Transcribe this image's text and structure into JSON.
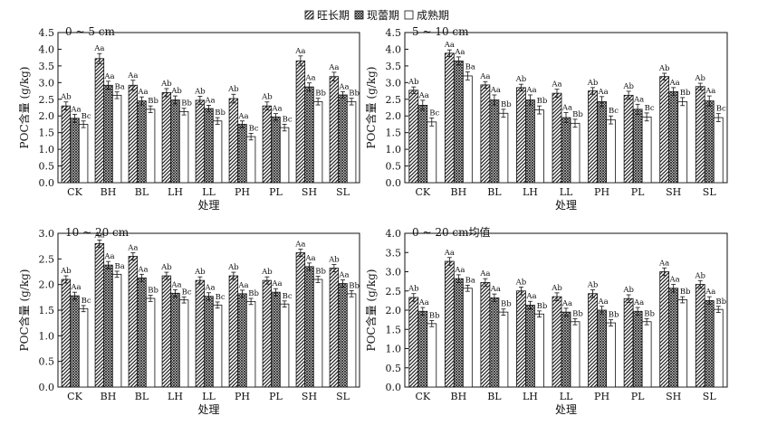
{
  "legend": {
    "items": [
      {
        "name": "旺长期",
        "pattern": "diag"
      },
      {
        "name": "现蕾期",
        "pattern": "cross"
      },
      {
        "name": "成熟期",
        "pattern": "none"
      }
    ]
  },
  "chart_data": [
    {
      "type": "bar",
      "title": "0 ~ 5 cm",
      "xlabel": "处理",
      "ylabel": "POC含量 (g/kg)",
      "ylim": [
        0,
        4.5
      ],
      "yticks": [
        "0.0",
        "0.5",
        "1.0",
        "1.5",
        "2.0",
        "2.5",
        "3.0",
        "3.5",
        "4.0",
        "4.5"
      ],
      "categories": [
        "CK",
        "BH",
        "BL",
        "LH",
        "LL",
        "PH",
        "PL",
        "SH",
        "SL"
      ],
      "series": [
        {
          "name": "旺长期",
          "values": [
            2.3,
            3.72,
            2.92,
            2.7,
            2.47,
            2.52,
            2.3,
            3.65,
            3.18
          ],
          "errors": [
            0.12,
            0.15,
            0.15,
            0.12,
            0.12,
            0.13,
            0.12,
            0.15,
            0.13
          ],
          "labels": [
            "Ab",
            "Aa",
            "Aa",
            "Ab",
            "Ab",
            "Ab",
            "Ab",
            "Aa",
            "Aa"
          ]
        },
        {
          "name": "现蕾期",
          "values": [
            1.93,
            2.92,
            2.45,
            2.48,
            2.22,
            1.75,
            1.97,
            2.87,
            2.63
          ],
          "errors": [
            0.12,
            0.12,
            0.12,
            0.12,
            0.1,
            0.1,
            0.1,
            0.12,
            0.1
          ],
          "labels": [
            "Aa",
            "Aa",
            "Aa",
            "Ab",
            "Aa",
            "Aa",
            "Aa",
            "Aa",
            "Aa"
          ]
        },
        {
          "name": "成熟期",
          "values": [
            1.75,
            2.62,
            2.2,
            2.13,
            1.85,
            1.38,
            1.65,
            2.43,
            2.43
          ],
          "errors": [
            0.1,
            0.1,
            0.1,
            0.1,
            0.1,
            0.1,
            0.1,
            0.1,
            0.1
          ],
          "labels": [
            "Bc",
            "Ba",
            "Bb",
            "Bb",
            "Bb",
            "Bc",
            "Bc",
            "Bb",
            "Bb"
          ]
        }
      ]
    },
    {
      "type": "bar",
      "title": "5 ~ 10 cm",
      "xlabel": "处理",
      "ylabel": "POC含量 (g/kg)",
      "ylim": [
        0,
        4.5
      ],
      "yticks": [
        "0.0",
        "0.5",
        "1.0",
        "1.5",
        "2.0",
        "2.5",
        "3.0",
        "3.5",
        "4.0",
        "4.5"
      ],
      "categories": [
        "CK",
        "BH",
        "BL",
        "LH",
        "LL",
        "PH",
        "PL",
        "SH",
        "SL"
      ],
      "series": [
        {
          "name": "旺长期",
          "values": [
            2.77,
            3.88,
            2.93,
            2.85,
            2.68,
            2.75,
            2.62,
            3.18,
            2.88
          ],
          "errors": [
            0.1,
            0.1,
            0.1,
            0.1,
            0.12,
            0.1,
            0.12,
            0.1,
            0.1
          ],
          "labels": [
            "Ab",
            "Aa",
            "Aa",
            "Ab",
            "Aa",
            "Ab",
            "Ab",
            "Ab",
            "Ab"
          ]
        },
        {
          "name": "现蕾期",
          "values": [
            2.32,
            3.65,
            2.48,
            2.48,
            1.95,
            2.43,
            2.2,
            2.73,
            2.45
          ],
          "errors": [
            0.15,
            0.12,
            0.15,
            0.15,
            0.15,
            0.15,
            0.15,
            0.12,
            0.15
          ],
          "labels": [
            "Aa",
            "Aa",
            "Aa",
            "Aa",
            "Aa",
            "Aa",
            "Aa",
            "Aa",
            "Aa"
          ]
        },
        {
          "name": "成熟期",
          "values": [
            1.82,
            3.2,
            2.08,
            2.18,
            1.78,
            1.88,
            1.97,
            2.43,
            1.95
          ],
          "errors": [
            0.12,
            0.12,
            0.12,
            0.12,
            0.12,
            0.12,
            0.12,
            0.12,
            0.12
          ],
          "labels": [
            "Bc",
            "Ba",
            "Bb",
            "Bb",
            "Bb",
            "Bc",
            "Bc",
            "Bb",
            "Bc"
          ]
        }
      ]
    },
    {
      "type": "bar",
      "title": "10 ~ 20 cm",
      "xlabel": "处理",
      "ylabel": "POC含量 (g/kg)",
      "ylim": [
        0,
        3.0
      ],
      "yticks": [
        "0.0",
        "0.5",
        "1.0",
        "1.5",
        "2.0",
        "2.5",
        "3.0"
      ],
      "categories": [
        "CK",
        "BH",
        "BL",
        "LH",
        "LL",
        "PH",
        "PL",
        "SH",
        "SL"
      ],
      "series": [
        {
          "name": "旺长期",
          "values": [
            2.1,
            2.8,
            2.55,
            2.17,
            2.08,
            2.17,
            2.08,
            2.62,
            2.32
          ],
          "errors": [
            0.07,
            0.07,
            0.07,
            0.07,
            0.07,
            0.07,
            0.07,
            0.07,
            0.07
          ],
          "labels": [
            "Ab",
            "Aa",
            "Aa",
            "Ab",
            "Ab",
            "Ab",
            "Ab",
            "Aa",
            "Ab"
          ]
        },
        {
          "name": "现蕾期",
          "values": [
            1.78,
            2.38,
            2.13,
            1.83,
            1.77,
            1.82,
            1.85,
            2.35,
            2.02
          ],
          "errors": [
            0.07,
            0.07,
            0.07,
            0.07,
            0.07,
            0.07,
            0.07,
            0.07,
            0.07
          ],
          "labels": [
            "Aa",
            "Aa",
            "Aa",
            "Aa",
            "Aa",
            "Aa",
            "Aa",
            "Aa",
            "Aa"
          ]
        },
        {
          "name": "成熟期",
          "values": [
            1.53,
            2.2,
            1.73,
            1.7,
            1.6,
            1.67,
            1.62,
            2.1,
            1.82
          ],
          "errors": [
            0.06,
            0.06,
            0.06,
            0.06,
            0.06,
            0.06,
            0.06,
            0.06,
            0.06
          ],
          "labels": [
            "Bc",
            "Ba",
            "Bb",
            "Bc",
            "Bc",
            "Bb",
            "Bc",
            "Bb",
            "Bb"
          ]
        }
      ]
    },
    {
      "type": "bar",
      "title": "0 ~ 20 cm均值",
      "xlabel": "处理",
      "ylabel": "POC含量 (g/kg)",
      "ylim": [
        0,
        4.0
      ],
      "yticks": [
        "0.0",
        "0.5",
        "1.0",
        "1.5",
        "2.0",
        "2.5",
        "3.0",
        "3.5",
        "4.0"
      ],
      "categories": [
        "CK",
        "BH",
        "BL",
        "LH",
        "LL",
        "PH",
        "PL",
        "SH",
        "SL"
      ],
      "series": [
        {
          "name": "旺长期",
          "values": [
            2.33,
            3.27,
            2.72,
            2.5,
            2.35,
            2.43,
            2.3,
            3.0,
            2.67
          ],
          "errors": [
            0.1,
            0.1,
            0.1,
            0.1,
            0.1,
            0.1,
            0.1,
            0.1,
            0.1
          ],
          "labels": [
            "Ab",
            "Aa",
            "Aa",
            "Ab",
            "Ab",
            "Ab",
            "Ab",
            "Aa",
            "Ab"
          ]
        },
        {
          "name": "现蕾期",
          "values": [
            1.97,
            2.82,
            2.32,
            2.13,
            1.95,
            2.0,
            1.97,
            2.57,
            2.25
          ],
          "errors": [
            0.1,
            0.1,
            0.1,
            0.1,
            0.1,
            0.1,
            0.1,
            0.1,
            0.1
          ],
          "labels": [
            "Aa",
            "Aa",
            "Aa",
            "Aa",
            "Aa",
            "Aa",
            "Aa",
            "Aa",
            "Aa"
          ]
        },
        {
          "name": "成熟期",
          "values": [
            1.65,
            2.57,
            1.95,
            1.9,
            1.7,
            1.67,
            1.7,
            2.27,
            2.02
          ],
          "errors": [
            0.08,
            0.08,
            0.08,
            0.08,
            0.08,
            0.08,
            0.08,
            0.08,
            0.08
          ],
          "labels": [
            "Bb",
            "Ba",
            "Bb",
            "Bb",
            "Bb",
            "Bb",
            "Bb",
            "Bb",
            "Bb"
          ]
        }
      ]
    }
  ]
}
